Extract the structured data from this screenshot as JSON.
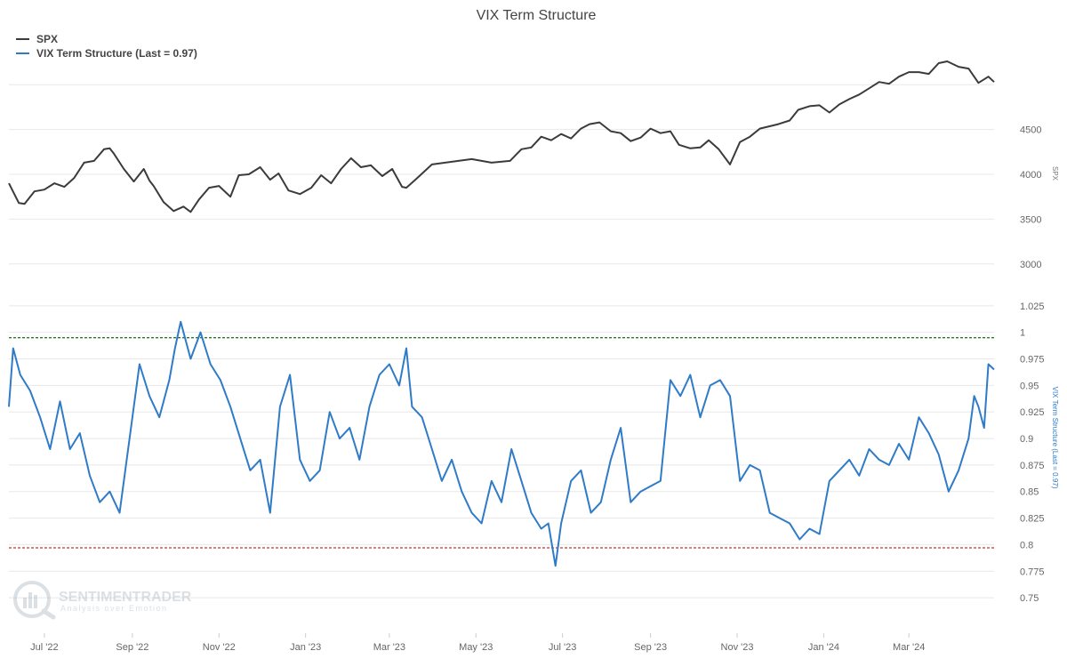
{
  "chart_data": {
    "type": "line",
    "title": "VIX Term Structure",
    "colors": {
      "spx": "#3b3b3b",
      "vix": "#2f7bc7",
      "upper_line": "#2a7a2a",
      "lower_line": "#c0392b",
      "grid": "#e8e8e8"
    },
    "legend": {
      "placement": "top-left",
      "entries": [
        {
          "key": "spx",
          "label": "SPX"
        },
        {
          "key": "vix",
          "label": "VIX Term Structure (Last = 0.97)"
        }
      ]
    },
    "x_axis": {
      "range": [
        "2022-06-06",
        "2024-04-30"
      ],
      "tick_labels": [
        "Jul '22",
        "Sep '22",
        "Nov '22",
        "Jan '23",
        "Mar '23",
        "May '23",
        "Jul '23",
        "Sep '23",
        "Nov '23",
        "Jan '24",
        "Mar '24"
      ],
      "tick_dates": [
        "2022-07-01",
        "2022-09-01",
        "2022-11-01",
        "2023-01-01",
        "2023-03-01",
        "2023-05-01",
        "2023-07-01",
        "2023-09-01",
        "2023-11-01",
        "2024-01-01",
        "2024-03-01"
      ]
    },
    "spx_axis": {
      "title": "SPX",
      "range": [
        2750,
        5300
      ],
      "tick_values": [
        3000,
        3500,
        4000,
        4500
      ],
      "tick_labels": [
        "3000",
        "3500",
        "4000",
        "4500"
      ]
    },
    "vix_axis": {
      "title": "VIX Term Structure (Last = 0.97)",
      "range": [
        0.735,
        1.045
      ],
      "tick_values": [
        0.75,
        0.775,
        0.8,
        0.825,
        0.85,
        0.875,
        0.9,
        0.925,
        0.95,
        0.975,
        1,
        1.025
      ],
      "tick_labels": [
        "0.75",
        "0.775",
        "0.8",
        "0.825",
        "0.85",
        "0.875",
        "0.9",
        "0.925",
        "0.95",
        "0.975",
        "1",
        "1.025"
      ]
    },
    "reference_lines": [
      {
        "axis": "vix",
        "value": 0.995,
        "color_key": "upper_line",
        "style": "dashed"
      },
      {
        "axis": "vix",
        "value": 0.797,
        "color_key": "lower_line",
        "style": "dashed"
      }
    ],
    "grid": true,
    "series": [
      {
        "name": "SPX",
        "axis": "spx",
        "x": [
          "2022-06-06",
          "2022-06-13",
          "2022-06-17",
          "2022-06-24",
          "2022-07-01",
          "2022-07-08",
          "2022-07-15",
          "2022-07-22",
          "2022-07-29",
          "2022-08-05",
          "2022-08-12",
          "2022-08-16",
          "2022-08-19",
          "2022-08-26",
          "2022-09-02",
          "2022-09-09",
          "2022-09-13",
          "2022-09-16",
          "2022-09-23",
          "2022-09-30",
          "2022-10-07",
          "2022-10-12",
          "2022-10-18",
          "2022-10-25",
          "2022-11-01",
          "2022-11-09",
          "2022-11-15",
          "2022-11-22",
          "2022-11-30",
          "2022-12-07",
          "2022-12-13",
          "2022-12-20",
          "2022-12-28",
          "2023-01-05",
          "2023-01-12",
          "2023-01-19",
          "2023-01-26",
          "2023-02-02",
          "2023-02-09",
          "2023-02-16",
          "2023-02-24",
          "2023-03-03",
          "2023-03-10",
          "2023-03-13",
          "2023-03-20",
          "2023-03-31",
          "2023-04-14",
          "2023-04-28",
          "2023-05-12",
          "2023-05-25",
          "2023-06-02",
          "2023-06-09",
          "2023-06-16",
          "2023-06-23",
          "2023-06-30",
          "2023-07-07",
          "2023-07-14",
          "2023-07-20",
          "2023-07-27",
          "2023-08-04",
          "2023-08-11",
          "2023-08-18",
          "2023-08-25",
          "2023-09-01",
          "2023-09-08",
          "2023-09-15",
          "2023-09-21",
          "2023-09-29",
          "2023-10-06",
          "2023-10-12",
          "2023-10-19",
          "2023-10-27",
          "2023-11-03",
          "2023-11-10",
          "2023-11-17",
          "2023-11-30",
          "2023-12-08",
          "2023-12-14",
          "2023-12-22",
          "2023-12-29",
          "2024-01-05",
          "2024-01-12",
          "2024-01-19",
          "2024-01-26",
          "2024-02-02",
          "2024-02-09",
          "2024-02-16",
          "2024-02-23",
          "2024-03-01",
          "2024-03-08",
          "2024-03-15",
          "2024-03-22",
          "2024-03-28",
          "2024-04-05",
          "2024-04-12",
          "2024-04-19",
          "2024-04-26",
          "2024-04-30"
        ],
        "values": [
          3900,
          3680,
          3670,
          3810,
          3830,
          3900,
          3860,
          3960,
          4130,
          4150,
          4280,
          4290,
          4230,
          4060,
          3920,
          4060,
          3930,
          3870,
          3690,
          3590,
          3640,
          3580,
          3720,
          3850,
          3870,
          3750,
          3990,
          4000,
          4080,
          3940,
          4010,
          3820,
          3780,
          3850,
          3990,
          3900,
          4060,
          4180,
          4080,
          4100,
          3980,
          4060,
          3860,
          3850,
          3950,
          4110,
          4140,
          4170,
          4130,
          4150,
          4280,
          4300,
          4420,
          4380,
          4450,
          4400,
          4510,
          4560,
          4580,
          4480,
          4460,
          4370,
          4410,
          4510,
          4460,
          4480,
          4330,
          4290,
          4300,
          4380,
          4280,
          4110,
          4360,
          4420,
          4510,
          4560,
          4600,
          4720,
          4760,
          4770,
          4690,
          4780,
          4840,
          4890,
          4960,
          5030,
          5010,
          5090,
          5140,
          5140,
          5120,
          5240,
          5260,
          5200,
          5180,
          5020,
          5090,
          5030
        ]
      },
      {
        "name": "VIX Term Structure (Last = 0.97)",
        "axis": "vix",
        "x": [
          "2022-06-06",
          "2022-06-09",
          "2022-06-14",
          "2022-06-21",
          "2022-06-28",
          "2022-07-05",
          "2022-07-12",
          "2022-07-19",
          "2022-07-26",
          "2022-08-02",
          "2022-08-09",
          "2022-08-16",
          "2022-08-23",
          "2022-08-30",
          "2022-09-06",
          "2022-09-13",
          "2022-09-20",
          "2022-09-27",
          "2022-10-01",
          "2022-10-05",
          "2022-10-12",
          "2022-10-19",
          "2022-10-26",
          "2022-11-02",
          "2022-11-09",
          "2022-11-16",
          "2022-11-23",
          "2022-11-30",
          "2022-12-07",
          "2022-12-14",
          "2022-12-21",
          "2022-12-28",
          "2023-01-04",
          "2023-01-11",
          "2023-01-18",
          "2023-01-25",
          "2023-02-01",
          "2023-02-08",
          "2023-02-15",
          "2023-02-22",
          "2023-03-01",
          "2023-03-08",
          "2023-03-13",
          "2023-03-17",
          "2023-03-24",
          "2023-03-31",
          "2023-04-07",
          "2023-04-14",
          "2023-04-21",
          "2023-04-28",
          "2023-05-05",
          "2023-05-12",
          "2023-05-19",
          "2023-05-26",
          "2023-06-02",
          "2023-06-09",
          "2023-06-16",
          "2023-06-21",
          "2023-06-26",
          "2023-06-30",
          "2023-07-07",
          "2023-07-14",
          "2023-07-21",
          "2023-07-28",
          "2023-08-04",
          "2023-08-11",
          "2023-08-18",
          "2023-08-25",
          "2023-09-01",
          "2023-09-08",
          "2023-09-15",
          "2023-09-22",
          "2023-09-29",
          "2023-10-06",
          "2023-10-13",
          "2023-10-20",
          "2023-10-27",
          "2023-11-03",
          "2023-11-10",
          "2023-11-17",
          "2023-11-24",
          "2023-12-01",
          "2023-12-08",
          "2023-12-15",
          "2023-12-22",
          "2023-12-29",
          "2024-01-05",
          "2024-01-12",
          "2024-01-19",
          "2024-01-26",
          "2024-02-02",
          "2024-02-09",
          "2024-02-16",
          "2024-02-23",
          "2024-03-01",
          "2024-03-08",
          "2024-03-15",
          "2024-03-22",
          "2024-03-29",
          "2024-04-05",
          "2024-04-12",
          "2024-04-16",
          "2024-04-19",
          "2024-04-23",
          "2024-04-26",
          "2024-04-30"
        ],
        "values": [
          0.93,
          0.985,
          0.96,
          0.945,
          0.92,
          0.89,
          0.935,
          0.89,
          0.905,
          0.865,
          0.84,
          0.85,
          0.83,
          0.9,
          0.97,
          0.94,
          0.92,
          0.955,
          0.985,
          1.01,
          0.975,
          1.0,
          0.97,
          0.955,
          0.93,
          0.9,
          0.87,
          0.88,
          0.83,
          0.93,
          0.96,
          0.88,
          0.86,
          0.87,
          0.925,
          0.9,
          0.91,
          0.88,
          0.93,
          0.96,
          0.97,
          0.95,
          0.985,
          0.93,
          0.92,
          0.89,
          0.86,
          0.88,
          0.85,
          0.83,
          0.82,
          0.86,
          0.84,
          0.89,
          0.86,
          0.83,
          0.815,
          0.82,
          0.78,
          0.82,
          0.86,
          0.87,
          0.83,
          0.84,
          0.88,
          0.91,
          0.84,
          0.85,
          0.855,
          0.86,
          0.955,
          0.94,
          0.96,
          0.92,
          0.95,
          0.955,
          0.94,
          0.86,
          0.875,
          0.87,
          0.83,
          0.825,
          0.82,
          0.805,
          0.815,
          0.81,
          0.86,
          0.87,
          0.88,
          0.865,
          0.89,
          0.88,
          0.875,
          0.895,
          0.88,
          0.92,
          0.905,
          0.885,
          0.85,
          0.87,
          0.9,
          0.94,
          0.93,
          0.91,
          0.97,
          0.965
        ]
      }
    ],
    "watermark": {
      "brand": "SENTIMENTRADER",
      "tagline": "Analysis over Emotion"
    }
  }
}
